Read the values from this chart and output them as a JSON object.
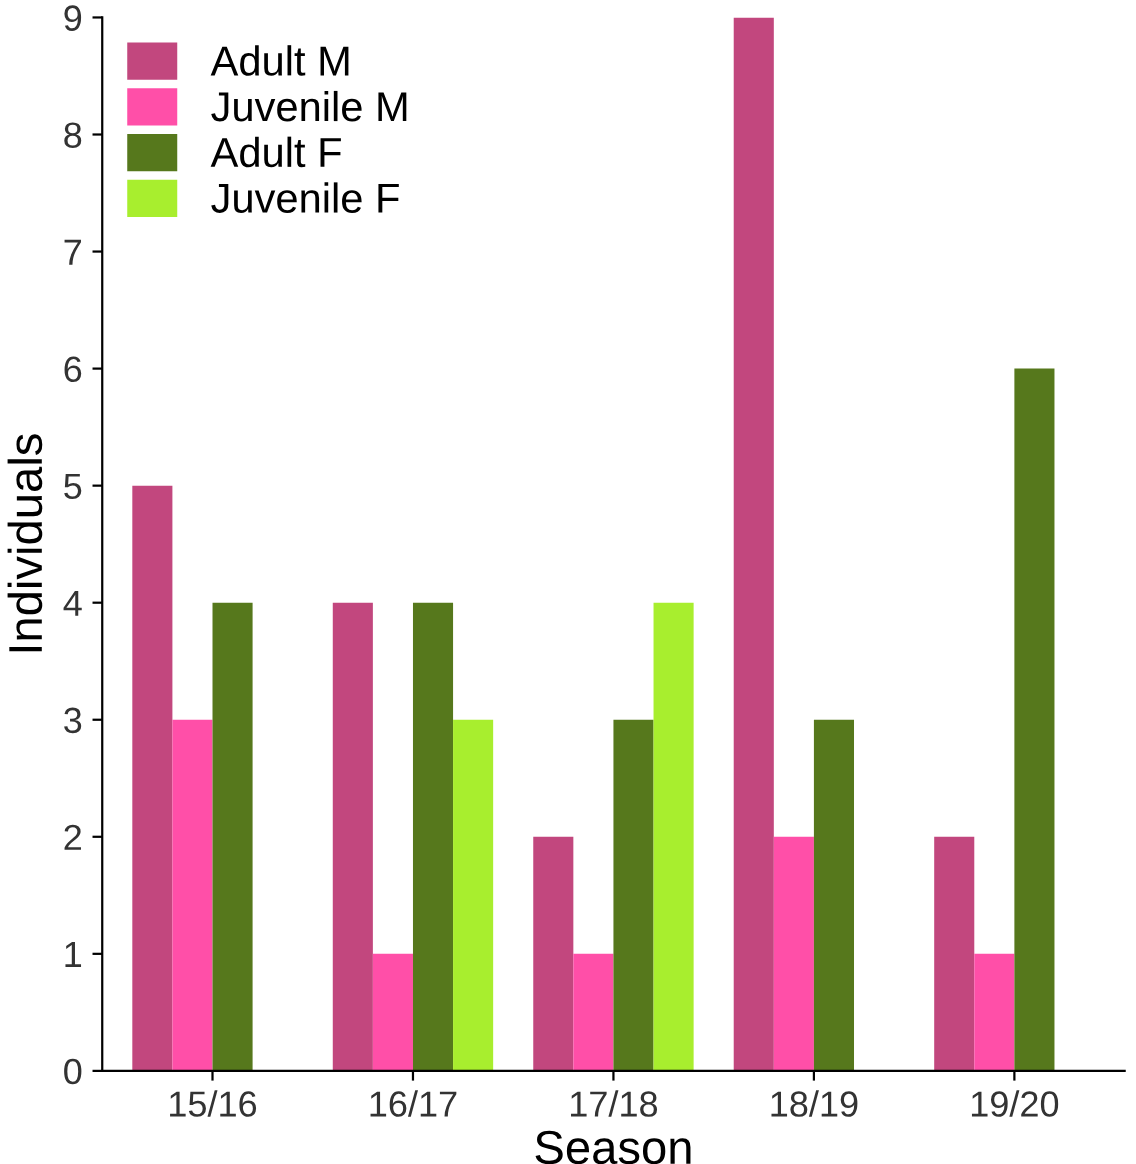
{
  "chart_data": {
    "type": "bar",
    "xlabel": "Season",
    "ylabel": "Individuals",
    "categories": [
      "15/16",
      "16/17",
      "17/18",
      "18/19",
      "19/20"
    ],
    "series": [
      {
        "name": "Adult M",
        "color": "#c2477e",
        "values": [
          5,
          4,
          2,
          9,
          2
        ]
      },
      {
        "name": "Juvenile M",
        "color": "#ff4fa8",
        "values": [
          3,
          1,
          1,
          2,
          1
        ]
      },
      {
        "name": "Adult F",
        "color": "#56781c",
        "values": [
          4,
          4,
          3,
          3,
          6
        ]
      },
      {
        "name": "Juvenile F",
        "color": "#a8ee2e",
        "values": [
          null,
          3,
          4,
          null,
          null
        ]
      }
    ],
    "ylim": [
      0,
      9
    ],
    "yticks": [
      0,
      1,
      2,
      3,
      4,
      5,
      6,
      7,
      8,
      9
    ],
    "grid": false,
    "legend": "top left"
  }
}
